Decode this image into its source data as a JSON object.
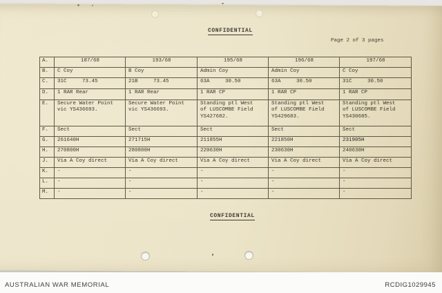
{
  "page": {
    "paper_color": "#ece4c9",
    "ink_color": "#3b392e",
    "background_color": "#e7e6e2",
    "footer_background": "#fbfbf9"
  },
  "document": {
    "classification_top": "CONFIDENTIAL",
    "page_label": "Page 2 of 3 pages",
    "classification_bottom": "CONFIDENTIAL",
    "table": {
      "rows": [
        {
          "label": "A.",
          "header": true,
          "cells": [
            "187/68",
            "193/68",
            "195/68",
            "196/68",
            "197/68"
          ]
        },
        {
          "label": "B.",
          "cells": [
            "C Coy",
            "B Coy",
            "Admin Coy",
            "Admin Coy",
            "C Coy"
          ]
        },
        {
          "label": "C.",
          "cells": [
            "31C     73.45",
            "21B     73.45",
            "63A     30.50",
            "63A     30.50",
            "31C     30.50"
          ]
        },
        {
          "label": "D.",
          "cells": [
            "1 RAR Rear",
            "1 RAR Rear",
            "1 RAR CP",
            "1 RAR CP",
            "1 RAR CP"
          ]
        },
        {
          "label": "E.",
          "cells": [
            "Secure Water Point\nvic YS436693.",
            "Secure Water Point\nvic YS436693.",
            "Standing ptl West\nof LUSCOMBE Field\nYS427682.",
            "Standing ptl West\nof LUSCOMBE Field\nYS429683.",
            "Standing ptl West\nof LUSCOMBE Field\nYS430685."
          ]
        },
        {
          "label": "F.",
          "cells": [
            "Sect",
            "Sect",
            "Sect",
            "Sect",
            "Sect"
          ]
        },
        {
          "label": "G.",
          "bold": [
            4
          ],
          "cells": [
            "261640H",
            "271715H",
            "211855H",
            "221850H",
            "231905H"
          ]
        },
        {
          "label": "H.",
          "cells": [
            "270800H",
            "280800H",
            "220630H",
            "230630H",
            "240630H"
          ]
        },
        {
          "label": "J.",
          "cells": [
            "Via A Coy direct",
            "Via A Coy direct",
            "Via A Coy direct",
            "Via A Coy direct",
            "Via A Coy direct"
          ]
        },
        {
          "label": "K.",
          "cells": [
            "-",
            "-",
            "-",
            "-",
            "-"
          ]
        },
        {
          "label": "L.",
          "cells": [
            "-",
            "-",
            "-",
            "-",
            "-"
          ]
        },
        {
          "label": "M.",
          "cells": [
            "-",
            "-",
            "-",
            "-",
            "-"
          ]
        }
      ]
    }
  },
  "viewer": {
    "archive_name": "AUSTRALIAN WAR MEMORIAL",
    "record_id": "RCDIG1029945"
  }
}
